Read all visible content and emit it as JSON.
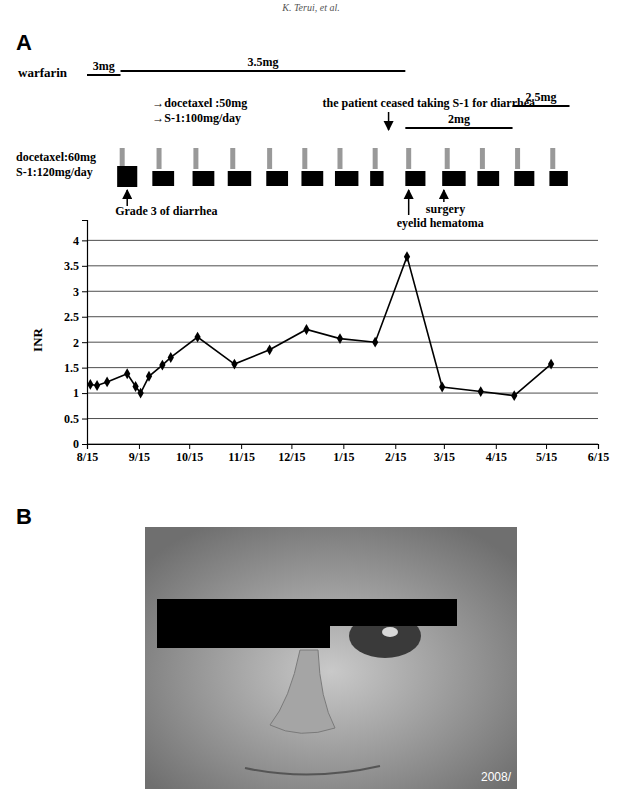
{
  "chart_data": {
    "type": "line",
    "header": "K. Terui, et al.",
    "panel_labels": [
      "A",
      "B"
    ],
    "y_label": "INR",
    "x": [
      2,
      6,
      12,
      24,
      29,
      32,
      37,
      45,
      50,
      66,
      88,
      109,
      131,
      151,
      172,
      191,
      212,
      235,
      255,
      277
    ],
    "values": [
      1.17,
      1.15,
      1.22,
      1.38,
      1.13,
      1.0,
      1.33,
      1.55,
      1.7,
      2.1,
      1.57,
      1.85,
      2.25,
      2.07,
      2.0,
      3.68,
      1.12,
      1.03,
      0.95,
      1.57
    ],
    "color": "#000000",
    "marker": "diamond",
    "line_style": "solid",
    "xlim": [
      0,
      305
    ],
    "xticks": [
      {
        "value": 0,
        "label": "8/15"
      },
      {
        "value": 31,
        "label": "9/15"
      },
      {
        "value": 61,
        "label": "10/15"
      },
      {
        "value": 92,
        "label": "11/15"
      },
      {
        "value": 122,
        "label": "12/15"
      },
      {
        "value": 153,
        "label": "1/15"
      },
      {
        "value": 184,
        "label": "2/15"
      },
      {
        "value": 213,
        "label": "3/15"
      },
      {
        "value": 244,
        "label": "4/15"
      },
      {
        "value": 274,
        "label": "5/15"
      },
      {
        "value": 305,
        "label": "6/15"
      }
    ],
    "ylim": [
      0,
      4.4
    ],
    "yticks": [
      0,
      0.5,
      1,
      1.5,
      2,
      2.5,
      3,
      3.5,
      4
    ],
    "grid": true,
    "warfarin": {
      "label": "warfarin",
      "doses": [
        "3mg",
        "3.5mg",
        "2mg",
        "2.5mg"
      ],
      "start": [
        0,
        20,
        190,
        254
      ],
      "end": [
        20,
        190,
        254,
        288
      ]
    },
    "regimen": {
      "initial": [
        "docetaxel:60mg",
        "S-1:120mg/day"
      ],
      "change": [
        "→docetaxel :50mg",
        "→S-1:100mg/day"
      ]
    },
    "s1_courses": {
      "start": [
        18,
        39,
        63,
        84,
        107,
        128,
        148,
        169,
        190,
        212,
        233,
        255,
        276
      ],
      "end": [
        30,
        52,
        76,
        98,
        120,
        141,
        162,
        177,
        202,
        226,
        246,
        267,
        287
      ]
    },
    "docetaxel_days": [
      21,
      43,
      65,
      87,
      109,
      130,
      151,
      172,
      192,
      215,
      236,
      257,
      278
    ],
    "annotations": [
      {
        "text": "Grade 3  of diarrhea",
        "x": 24
      },
      {
        "text": "the patient ceased taking S-1 for diarrhea",
        "x": 180
      },
      {
        "text": "eyelid hematoma",
        "x": 192
      },
      {
        "text": "surgery",
        "x": 213
      }
    ],
    "photo": {
      "stamp": "2008/"
    }
  }
}
